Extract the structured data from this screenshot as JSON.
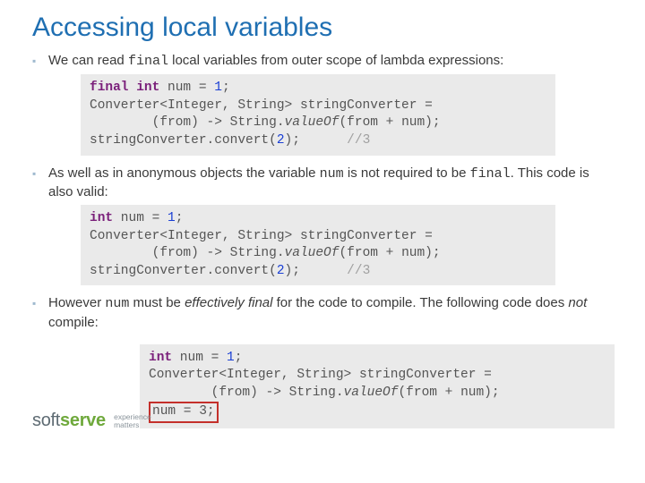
{
  "title": "Accessing local variables",
  "bullet1_pre": "We can read ",
  "bullet1_code": "final",
  "bullet1_post": " local variables from outer scope of lambda expressions:",
  "code1": {
    "l1_a": "final",
    "l1_b": " ",
    "l1_c": "int",
    "l1_d": " num = ",
    "l1_e": "1",
    "l1_f": ";",
    "l2_a": "Converter<Integer, String> stringConverter =",
    "l3_a": "        (from) -> String.",
    "l3_b": "valueOf",
    "l3_c": "(from + num);",
    "l4_a": "stringConverter.convert(",
    "l4_b": "2",
    "l4_c": ");      ",
    "l4_d": "//3"
  },
  "bullet2_pre": "As well as in anonymous objects the variable ",
  "bullet2_code": "num",
  "bullet2_mid": " is not required to be ",
  "bullet2_code2": "final",
  "bullet2_post": ". This code is also valid:",
  "code2": {
    "l1_a": "int",
    "l1_b": " num = ",
    "l1_c": "1",
    "l1_d": ";",
    "l2_a": "Converter<Integer, String> stringConverter =",
    "l3_a": "        (from) -> String.",
    "l3_b": "valueOf",
    "l3_c": "(from + num);",
    "l4_a": "stringConverter.convert(",
    "l4_b": "2",
    "l4_c": ");      ",
    "l4_d": "//3"
  },
  "bullet3_pre": "However ",
  "bullet3_code": "num",
  "bullet3_mid": " must be ",
  "bullet3_em": "effectively final",
  "bullet3_mid2": " for the code to compile. The following code does ",
  "bullet3_em2": "not",
  "bullet3_post": " compile:",
  "code3": {
    "l1_a": "int",
    "l1_b": " num = ",
    "l1_c": "1",
    "l1_d": ";",
    "l2_a": "Converter<Integer, String> stringConverter =",
    "l3_a": "        (from) -> String.",
    "l3_b": "valueOf",
    "l3_c": "(from + num);",
    "l4_err": "num = 3;"
  },
  "logo": {
    "soft": "soft",
    "serve": "serve",
    "tag1": "experience",
    "tag2": "matters"
  },
  "colors": {
    "title": "#1f6fb2",
    "bullet_marker": "#9fb9cf",
    "code_bg": "#eaeaea",
    "keyword": "#7a1f7a",
    "number": "#1a3fd4",
    "comment": "#a0a0a0",
    "error_border": "#c4302b",
    "logo_soft": "#5e6b73",
    "logo_serve": "#6fa93c"
  }
}
